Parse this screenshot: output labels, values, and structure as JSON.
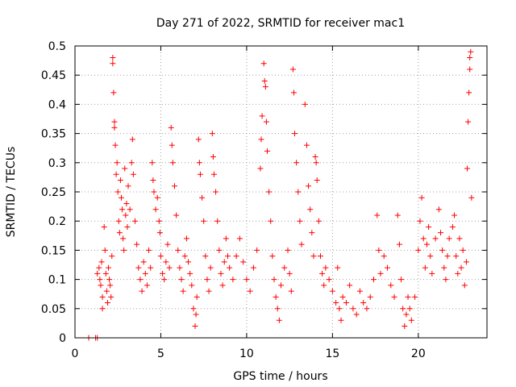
{
  "chart_data": {
    "type": "scatter",
    "title": "Day 271 of 2022, SRMTID for receiver mac1",
    "xlabel": "GPS time / hours",
    "ylabel": "SRMTID / TECUs",
    "xlim": [
      0,
      24
    ],
    "ylim": [
      0,
      0.5
    ],
    "xticks": [
      0,
      5,
      10,
      15,
      20
    ],
    "xtick_labels": [
      "0",
      "5",
      "10",
      "15",
      "20"
    ],
    "yticks": [
      0,
      0.05,
      0.1,
      0.15,
      0.2,
      0.25,
      0.3,
      0.35,
      0.4,
      0.45,
      0.5
    ],
    "ytick_labels": [
      "0",
      "0.05",
      "0.1",
      "0.15",
      "0.2",
      "0.25",
      "0.3",
      "0.35",
      "0.4",
      "0.45",
      "0.5"
    ],
    "grid": true,
    "marker": "+",
    "color": "#ff0000",
    "series": [
      {
        "name": "SRMTID",
        "points": [
          [
            0.8,
            0.0
          ],
          [
            1.2,
            0.0
          ],
          [
            1.3,
            0.0
          ],
          [
            1.3,
            0.11
          ],
          [
            1.4,
            0.12
          ],
          [
            1.45,
            0.1
          ],
          [
            1.5,
            0.09
          ],
          [
            1.55,
            0.13
          ],
          [
            1.6,
            0.07
          ],
          [
            1.6,
            0.05
          ],
          [
            1.7,
            0.19
          ],
          [
            1.75,
            0.15
          ],
          [
            1.8,
            0.11
          ],
          [
            1.85,
            0.08
          ],
          [
            1.9,
            0.06
          ],
          [
            1.95,
            0.12
          ],
          [
            2.0,
            0.1
          ],
          [
            2.05,
            0.09
          ],
          [
            2.1,
            0.07
          ],
          [
            2.15,
            0.14
          ],
          [
            2.2,
            0.48
          ],
          [
            2.2,
            0.47
          ],
          [
            2.25,
            0.42
          ],
          [
            2.3,
            0.37
          ],
          [
            2.3,
            0.36
          ],
          [
            2.35,
            0.33
          ],
          [
            2.4,
            0.28
          ],
          [
            2.45,
            0.3
          ],
          [
            2.5,
            0.25
          ],
          [
            2.55,
            0.2
          ],
          [
            2.6,
            0.18
          ],
          [
            2.65,
            0.27
          ],
          [
            2.7,
            0.24
          ],
          [
            2.75,
            0.22
          ],
          [
            2.8,
            0.17
          ],
          [
            2.85,
            0.15
          ],
          [
            2.9,
            0.29
          ],
          [
            2.95,
            0.21
          ],
          [
            3.0,
            0.23
          ],
          [
            3.05,
            0.19
          ],
          [
            3.1,
            0.26
          ],
          [
            3.2,
            0.22
          ],
          [
            3.3,
            0.3
          ],
          [
            3.35,
            0.34
          ],
          [
            3.4,
            0.28
          ],
          [
            3.5,
            0.2
          ],
          [
            3.6,
            0.16
          ],
          [
            3.7,
            0.12
          ],
          [
            3.8,
            0.1
          ],
          [
            3.9,
            0.08
          ],
          [
            4.0,
            0.13
          ],
          [
            4.1,
            0.11
          ],
          [
            4.2,
            0.09
          ],
          [
            4.3,
            0.15
          ],
          [
            4.4,
            0.12
          ],
          [
            4.5,
            0.3
          ],
          [
            4.55,
            0.27
          ],
          [
            4.6,
            0.25
          ],
          [
            4.7,
            0.22
          ],
          [
            4.8,
            0.24
          ],
          [
            4.9,
            0.2
          ],
          [
            4.95,
            0.18
          ],
          [
            5.0,
            0.14
          ],
          [
            5.1,
            0.11
          ],
          [
            5.2,
            0.1
          ],
          [
            5.3,
            0.13
          ],
          [
            5.4,
            0.16
          ],
          [
            5.5,
            0.12
          ],
          [
            5.6,
            0.36
          ],
          [
            5.65,
            0.33
          ],
          [
            5.7,
            0.3
          ],
          [
            5.8,
            0.26
          ],
          [
            5.9,
            0.21
          ],
          [
            6.0,
            0.15
          ],
          [
            6.1,
            0.12
          ],
          [
            6.2,
            0.1
          ],
          [
            6.3,
            0.08
          ],
          [
            6.4,
            0.14
          ],
          [
            6.5,
            0.17
          ],
          [
            6.6,
            0.13
          ],
          [
            6.7,
            0.11
          ],
          [
            6.8,
            0.09
          ],
          [
            6.9,
            0.05
          ],
          [
            7.0,
            0.02
          ],
          [
            7.05,
            0.04
          ],
          [
            7.1,
            0.07
          ],
          [
            7.2,
            0.34
          ],
          [
            7.25,
            0.3
          ],
          [
            7.3,
            0.28
          ],
          [
            7.4,
            0.24
          ],
          [
            7.5,
            0.2
          ],
          [
            7.6,
            0.14
          ],
          [
            7.7,
            0.1
          ],
          [
            7.8,
            0.08
          ],
          [
            7.9,
            0.12
          ],
          [
            8.0,
            0.35
          ],
          [
            8.05,
            0.31
          ],
          [
            8.1,
            0.28
          ],
          [
            8.2,
            0.25
          ],
          [
            8.3,
            0.2
          ],
          [
            8.4,
            0.15
          ],
          [
            8.5,
            0.11
          ],
          [
            8.6,
            0.09
          ],
          [
            8.7,
            0.13
          ],
          [
            8.8,
            0.17
          ],
          [
            8.9,
            0.14
          ],
          [
            9.0,
            0.12
          ],
          [
            9.2,
            0.1
          ],
          [
            9.4,
            0.14
          ],
          [
            9.6,
            0.17
          ],
          [
            9.8,
            0.13
          ],
          [
            10.0,
            0.1
          ],
          [
            10.2,
            0.08
          ],
          [
            10.4,
            0.12
          ],
          [
            10.6,
            0.15
          ],
          [
            10.8,
            0.29
          ],
          [
            10.85,
            0.34
          ],
          [
            10.9,
            0.38
          ],
          [
            11.0,
            0.47
          ],
          [
            11.05,
            0.44
          ],
          [
            11.1,
            0.43
          ],
          [
            11.15,
            0.37
          ],
          [
            11.2,
            0.32
          ],
          [
            11.3,
            0.25
          ],
          [
            11.4,
            0.2
          ],
          [
            11.5,
            0.14
          ],
          [
            11.6,
            0.1
          ],
          [
            11.7,
            0.07
          ],
          [
            11.8,
            0.05
          ],
          [
            11.9,
            0.03
          ],
          [
            12.0,
            0.09
          ],
          [
            12.2,
            0.12
          ],
          [
            12.4,
            0.15
          ],
          [
            12.5,
            0.11
          ],
          [
            12.6,
            0.08
          ],
          [
            12.7,
            0.46
          ],
          [
            12.75,
            0.42
          ],
          [
            12.8,
            0.35
          ],
          [
            12.9,
            0.3
          ],
          [
            13.0,
            0.25
          ],
          [
            13.1,
            0.2
          ],
          [
            13.2,
            0.16
          ],
          [
            13.4,
            0.4
          ],
          [
            13.5,
            0.33
          ],
          [
            13.6,
            0.26
          ],
          [
            13.7,
            0.22
          ],
          [
            13.8,
            0.18
          ],
          [
            13.9,
            0.14
          ],
          [
            14.0,
            0.31
          ],
          [
            14.05,
            0.3
          ],
          [
            14.1,
            0.27
          ],
          [
            14.2,
            0.2
          ],
          [
            14.3,
            0.14
          ],
          [
            14.4,
            0.11
          ],
          [
            14.5,
            0.09
          ],
          [
            14.6,
            0.12
          ],
          [
            14.8,
            0.1
          ],
          [
            15.0,
            0.08
          ],
          [
            15.2,
            0.06
          ],
          [
            15.3,
            0.12
          ],
          [
            15.4,
            0.05
          ],
          [
            15.5,
            0.03
          ],
          [
            15.6,
            0.07
          ],
          [
            15.8,
            0.06
          ],
          [
            16.0,
            0.09
          ],
          [
            16.2,
            0.05
          ],
          [
            16.4,
            0.04
          ],
          [
            16.6,
            0.08
          ],
          [
            16.8,
            0.06
          ],
          [
            17.0,
            0.05
          ],
          [
            17.2,
            0.07
          ],
          [
            17.4,
            0.1
          ],
          [
            17.6,
            0.21
          ],
          [
            17.7,
            0.15
          ],
          [
            17.8,
            0.11
          ],
          [
            18.0,
            0.14
          ],
          [
            18.2,
            0.12
          ],
          [
            18.4,
            0.09
          ],
          [
            18.6,
            0.07
          ],
          [
            18.8,
            0.21
          ],
          [
            18.9,
            0.16
          ],
          [
            19.0,
            0.1
          ],
          [
            19.1,
            0.05
          ],
          [
            19.2,
            0.02
          ],
          [
            19.3,
            0.04
          ],
          [
            19.4,
            0.07
          ],
          [
            19.5,
            0.05
          ],
          [
            19.6,
            0.03
          ],
          [
            19.8,
            0.07
          ],
          [
            20.0,
            0.15
          ],
          [
            20.1,
            0.2
          ],
          [
            20.2,
            0.24
          ],
          [
            20.3,
            0.17
          ],
          [
            20.4,
            0.12
          ],
          [
            20.5,
            0.16
          ],
          [
            20.6,
            0.19
          ],
          [
            20.7,
            0.14
          ],
          [
            20.8,
            0.11
          ],
          [
            21.0,
            0.17
          ],
          [
            21.2,
            0.22
          ],
          [
            21.3,
            0.18
          ],
          [
            21.4,
            0.15
          ],
          [
            21.5,
            0.12
          ],
          [
            21.6,
            0.1
          ],
          [
            21.7,
            0.14
          ],
          [
            21.8,
            0.17
          ],
          [
            22.0,
            0.19
          ],
          [
            22.1,
            0.21
          ],
          [
            22.2,
            0.14
          ],
          [
            22.3,
            0.11
          ],
          [
            22.4,
            0.17
          ],
          [
            22.5,
            0.12
          ],
          [
            22.6,
            0.15
          ],
          [
            22.7,
            0.09
          ],
          [
            22.8,
            0.13
          ],
          [
            22.85,
            0.29
          ],
          [
            22.9,
            0.37
          ],
          [
            22.95,
            0.42
          ],
          [
            23.0,
            0.46
          ],
          [
            23.0,
            0.48
          ],
          [
            23.05,
            0.49
          ],
          [
            23.1,
            0.24
          ]
        ]
      }
    ]
  }
}
